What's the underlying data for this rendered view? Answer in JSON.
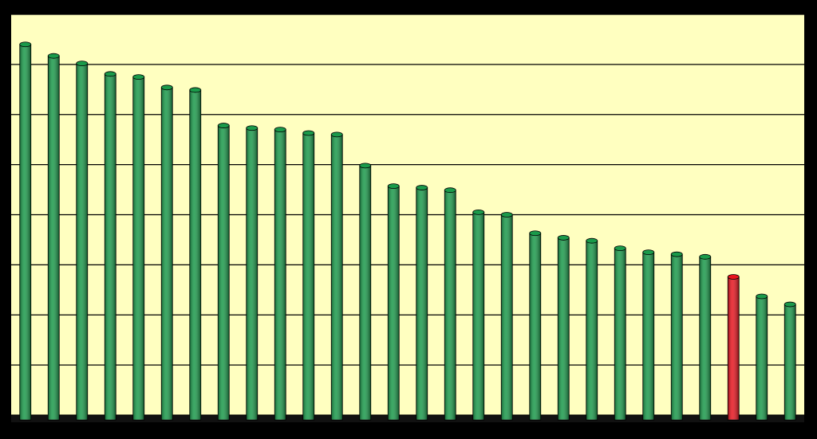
{
  "chart_data": {
    "type": "bar",
    "categories": [
      null,
      null,
      null,
      null,
      null,
      null,
      null,
      null,
      null,
      null,
      null,
      null,
      null,
      null,
      null,
      null,
      null,
      null,
      null,
      null,
      null,
      null,
      null,
      null,
      null,
      null,
      null,
      null
    ],
    "values": [
      7.4,
      7.17,
      7.02,
      6.81,
      6.75,
      6.54,
      6.49,
      5.78,
      5.73,
      5.7,
      5.63,
      5.6,
      4.98,
      4.57,
      4.54,
      4.49,
      4.05,
      4.0,
      3.63,
      3.54,
      3.48,
      3.33,
      3.25,
      3.21,
      3.16,
      2.76,
      2.37,
      2.21
    ],
    "colors": [
      "#1a9a4a",
      "#1a9a4a",
      "#1a9a4a",
      "#1a9a4a",
      "#1a9a4a",
      "#1a9a4a",
      "#1a9a4a",
      "#1a9a4a",
      "#1a9a4a",
      "#1a9a4a",
      "#1a9a4a",
      "#1a9a4a",
      "#1a9a4a",
      "#1a9a4a",
      "#1a9a4a",
      "#1a9a4a",
      "#1a9a4a",
      "#1a9a4a",
      "#1a9a4a",
      "#1a9a4a",
      "#1a9a4a",
      "#1a9a4a",
      "#1a9a4a",
      "#1a9a4a",
      "#1a9a4a",
      "#e8141e",
      "#1a9a4a",
      "#1a9a4a"
    ],
    "ylim": [
      0,
      8
    ],
    "yticks": [
      0,
      1,
      2,
      3,
      4,
      5,
      6,
      7,
      8
    ],
    "grid": true
  }
}
